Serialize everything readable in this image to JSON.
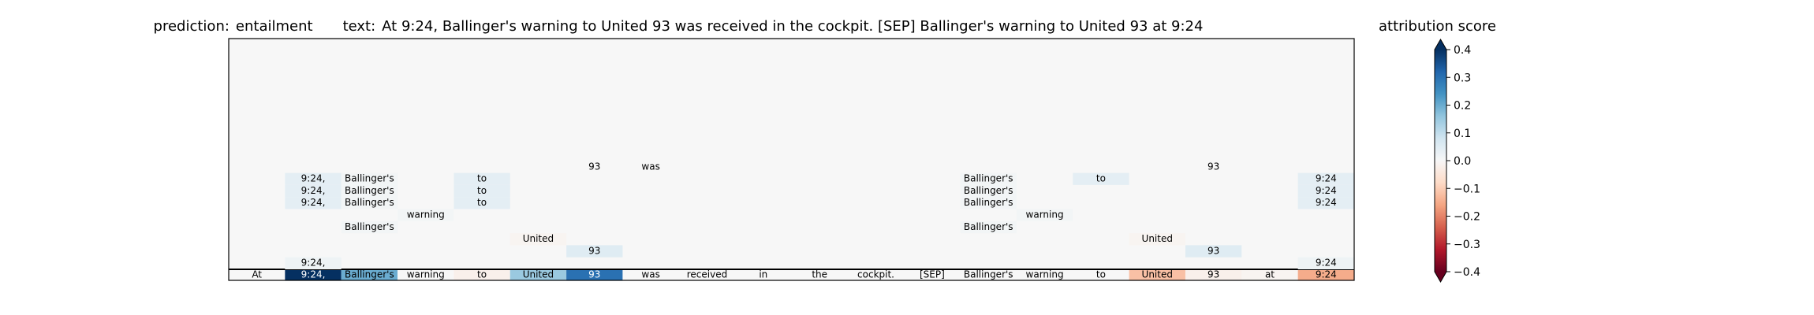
{
  "title_parts": {
    "prediction_label": "prediction:",
    "prediction": "entailment",
    "text_label": "text:",
    "text": "At 9:24, Ballinger's warning to United 93 was received in the cockpit. [SEP] Ballinger's warning to United 93 at 9:24"
  },
  "colorbar": {
    "title": "attribution score",
    "ticks": [
      "0.4",
      "0.3",
      "0.2",
      "0.1",
      "0.0",
      "−0.1",
      "−0.2",
      "−0.3",
      "−0.4"
    ],
    "range": [
      -0.4,
      0.4
    ],
    "colormap": "RdBu"
  },
  "chart_data": {
    "type": "heatmap",
    "tokens": [
      "At",
      "9:24,",
      "Ballinger's",
      "warning",
      "to",
      "United",
      "93",
      "was",
      "received",
      "in",
      "the",
      "cockpit.",
      "[SEP]",
      "Ballinger's",
      "warning",
      "to",
      "United",
      "93",
      "at",
      "9:24"
    ],
    "input_row": {
      "label": "input",
      "scores": [
        0.0,
        0.42,
        0.2,
        0.0,
        -0.02,
        0.15,
        0.3,
        0.0,
        0.0,
        0.0,
        0.0,
        0.0,
        0.0,
        0.0,
        0.0,
        0.0,
        -0.12,
        -0.02,
        -0.01,
        -0.15
      ]
    },
    "rows": [
      {
        "level": 0,
        "cells": [
          {
            "t": 1,
            "v": 0.02
          },
          {
            "t": 19,
            "v": 0.02
          }
        ]
      },
      {
        "level": 1,
        "cells": [
          {
            "t": 6,
            "v": 0.05
          },
          {
            "t": 17,
            "v": 0.05
          }
        ]
      },
      {
        "level": 2,
        "cells": [
          {
            "t": 5,
            "v": -0.01
          },
          {
            "t": 16,
            "v": -0.01
          }
        ]
      },
      {
        "level": 3,
        "cells": [
          {
            "t": 2,
            "v": 0.01
          },
          {
            "t": 13,
            "v": 0.01
          }
        ]
      },
      {
        "level": 4,
        "cells": [
          {
            "t": 3,
            "v": 0.01
          },
          {
            "t": 14,
            "v": 0.01
          }
        ]
      },
      {
        "level": 5,
        "cells": [
          {
            "t": 1,
            "v": 0.04
          },
          {
            "t": 2,
            "v": 0.01
          },
          {
            "t": 4,
            "v": 0.04
          },
          {
            "t": 13,
            "v": 0.01
          },
          {
            "t": 19,
            "v": 0.04
          }
        ]
      },
      {
        "level": 6,
        "cells": [
          {
            "t": 1,
            "v": 0.04
          },
          {
            "t": 2,
            "v": 0.01
          },
          {
            "t": 4,
            "v": 0.04
          },
          {
            "t": 13,
            "v": 0.01
          },
          {
            "t": 19,
            "v": 0.04
          }
        ]
      },
      {
        "level": 7,
        "cells": [
          {
            "t": 1,
            "v": 0.04
          },
          {
            "t": 2,
            "v": 0.01
          },
          {
            "t": 4,
            "v": 0.04
          },
          {
            "t": 13,
            "v": 0.01
          },
          {
            "t": 15,
            "v": 0.04
          },
          {
            "t": 19,
            "v": 0.04
          }
        ]
      },
      {
        "level": 8,
        "cells": [
          {
            "t": 6,
            "v": 0.0
          },
          {
            "t": 7,
            "v": 0.0
          },
          {
            "t": 17,
            "v": 0.0
          }
        ]
      }
    ],
    "grid": false
  }
}
